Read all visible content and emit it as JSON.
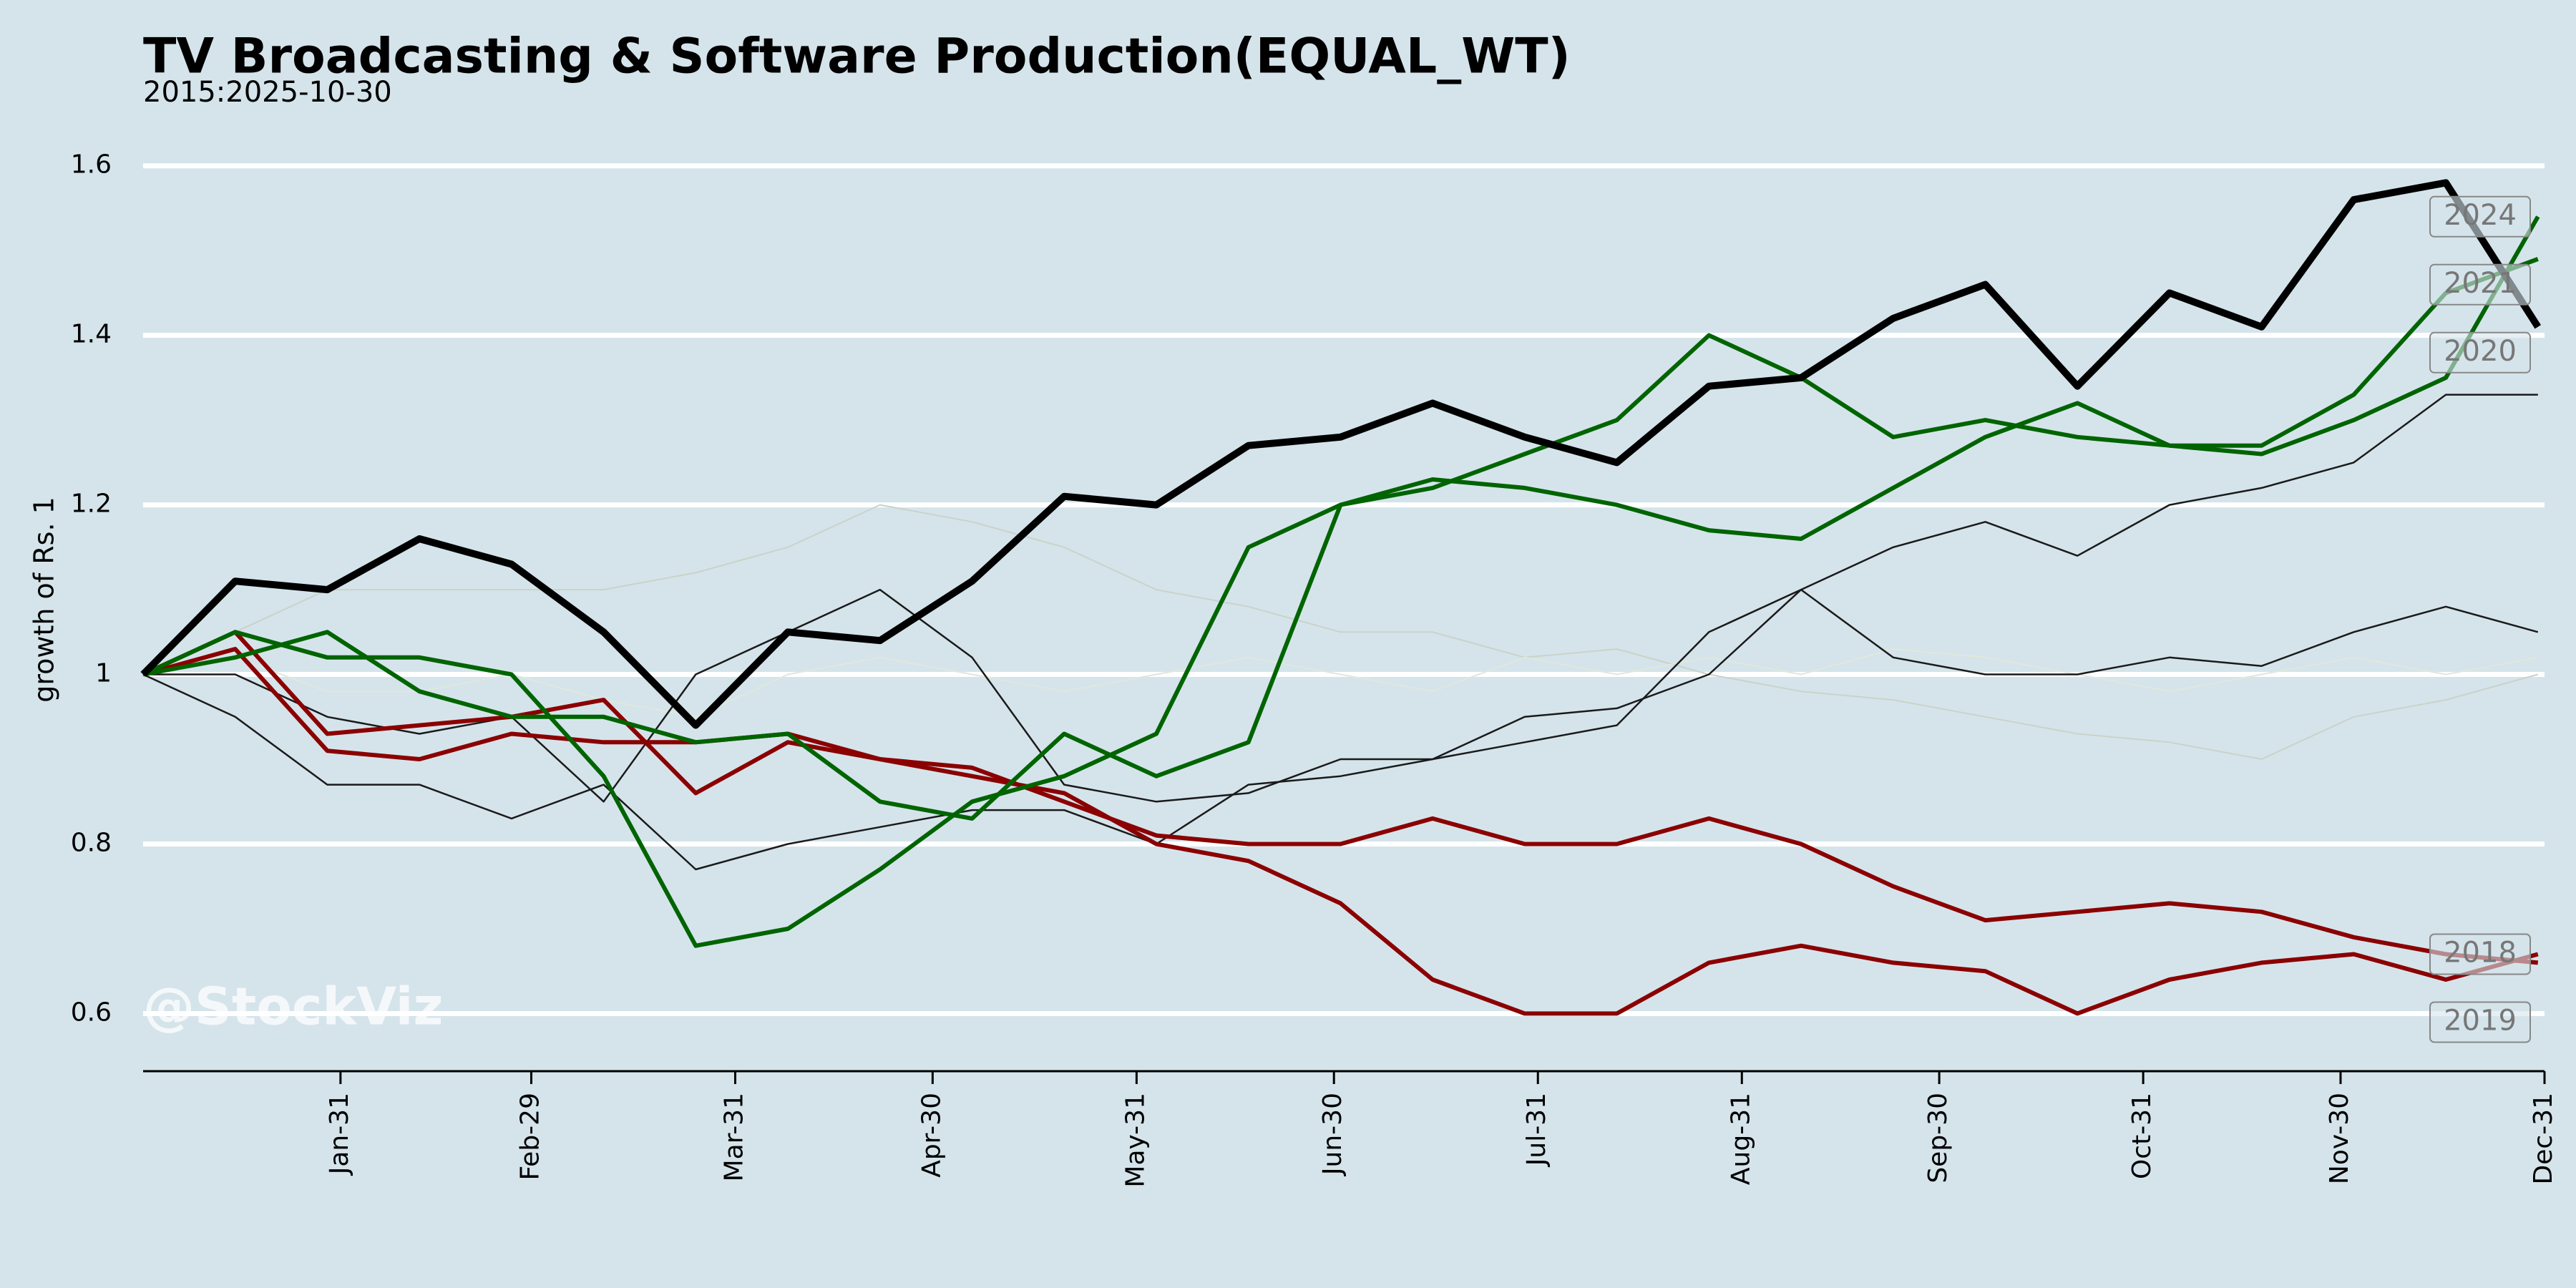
{
  "chart_data": {
    "type": "line",
    "title": "TV Broadcasting & Software Production(EQUAL_WT)",
    "subtitle": "2015:2025-10-30",
    "y_label": "growth of Rs. 1",
    "watermark": "@StockViz",
    "x": [
      1,
      15,
      29,
      43,
      57,
      71,
      85,
      99,
      113,
      127,
      141,
      155,
      169,
      183,
      197,
      211,
      225,
      239,
      253,
      267,
      281,
      295,
      309,
      323,
      337,
      351,
      365
    ],
    "xlim": [
      1,
      366
    ],
    "xticks": [
      {
        "value": 31,
        "label": "Jan-31"
      },
      {
        "value": 60,
        "label": "Feb-29"
      },
      {
        "value": 91,
        "label": "Mar-31"
      },
      {
        "value": 121,
        "label": "Apr-30"
      },
      {
        "value": 152,
        "label": "May-31"
      },
      {
        "value": 182,
        "label": "Jun-30"
      },
      {
        "value": 213,
        "label": "Jul-31"
      },
      {
        "value": 244,
        "label": "Aug-31"
      },
      {
        "value": 274,
        "label": "Sep-30"
      },
      {
        "value": 305,
        "label": "Oct-31"
      },
      {
        "value": 335,
        "label": "Nov-30"
      },
      {
        "value": 366,
        "label": "Dec-31"
      }
    ],
    "ylim": [
      0.532,
      1.62
    ],
    "yticks": [
      0.6,
      0.8,
      1.0,
      1.2,
      1.4,
      1.6
    ],
    "grid": true,
    "series": [
      {
        "color": "#c9d3c8",
        "values": [
          1.0,
          1.05,
          1.1,
          1.1,
          1.1,
          1.1,
          1.12,
          1.15,
          1.2,
          1.18,
          1.15,
          1.1,
          1.08,
          1.05,
          1.05,
          1.02,
          1.03,
          1.0,
          0.98,
          0.97,
          0.95,
          0.93,
          0.92,
          0.9,
          0.95,
          0.97,
          1.0
        ]
      },
      {
        "color": "#dfe8dc",
        "values": [
          1.0,
          1.02,
          0.98,
          0.98,
          1.0,
          0.97,
          0.95,
          1.0,
          1.02,
          1.0,
          0.98,
          1.0,
          1.02,
          1.0,
          0.98,
          1.02,
          1.0,
          1.02,
          1.0,
          1.03,
          1.02,
          1.0,
          0.98,
          1.0,
          1.02,
          1.0,
          1.02
        ]
      },
      {
        "color": "#1a1a1a",
        "values": [
          1.0,
          0.95,
          0.87,
          0.87,
          0.83,
          0.87,
          0.77,
          0.8,
          0.82,
          0.84,
          0.84,
          0.8,
          0.87,
          0.88,
          0.9,
          0.95,
          0.96,
          1.0,
          1.1,
          1.15,
          1.18,
          1.14,
          1.2,
          1.22,
          1.25,
          1.33,
          1.33
        ]
      },
      {
        "color": "#1a1a1a",
        "values": [
          1.0,
          1.0,
          0.95,
          0.93,
          0.95,
          0.85,
          1.0,
          1.05,
          1.1,
          1.02,
          0.87,
          0.85,
          0.86,
          0.9,
          0.9,
          0.92,
          0.94,
          1.05,
          1.1,
          1.02,
          1.0,
          1.0,
          1.02,
          1.01,
          1.05,
          1.08,
          1.05
        ]
      },
      {
        "name": "2019",
        "color": "#8b0000",
        "values": [
          1.0,
          1.05,
          0.93,
          0.94,
          0.95,
          0.97,
          0.86,
          0.92,
          0.9,
          0.89,
          0.85,
          0.81,
          0.8,
          0.8,
          0.83,
          0.8,
          0.8,
          0.83,
          0.8,
          0.75,
          0.71,
          0.72,
          0.73,
          0.72,
          0.69,
          0.67,
          0.66
        ]
      },
      {
        "name": "2018",
        "color": "#8b0000",
        "values": [
          1.0,
          1.03,
          0.91,
          0.9,
          0.93,
          0.92,
          0.92,
          0.93,
          0.9,
          0.88,
          0.86,
          0.8,
          0.78,
          0.73,
          0.64,
          0.6,
          0.6,
          0.66,
          0.68,
          0.66,
          0.65,
          0.6,
          0.64,
          0.66,
          0.67,
          0.64,
          0.67
        ]
      },
      {
        "name": "2021",
        "color": "#006400",
        "values": [
          1.0,
          1.05,
          1.02,
          1.02,
          1.0,
          0.88,
          0.68,
          0.7,
          0.77,
          0.85,
          0.88,
          0.93,
          1.15,
          1.2,
          1.22,
          1.26,
          1.3,
          1.4,
          1.35,
          1.28,
          1.3,
          1.28,
          1.27,
          1.27,
          1.33,
          1.45,
          1.49
        ]
      },
      {
        "name": "2024",
        "color": "#006400",
        "values": [
          1.0,
          1.02,
          1.05,
          0.98,
          0.95,
          0.95,
          0.92,
          0.93,
          0.85,
          0.83,
          0.93,
          0.88,
          0.92,
          1.2,
          1.23,
          1.22,
          1.2,
          1.17,
          1.16,
          1.22,
          1.28,
          1.32,
          1.27,
          1.26,
          1.3,
          1.35,
          1.54
        ]
      },
      {
        "name": "2020",
        "color": "#000000",
        "values": [
          1.0,
          1.11,
          1.1,
          1.16,
          1.13,
          1.05,
          0.94,
          1.05,
          1.04,
          1.11,
          1.21,
          1.2,
          1.27,
          1.28,
          1.32,
          1.28,
          1.25,
          1.34,
          1.35,
          1.42,
          1.46,
          1.34,
          1.45,
          1.41,
          1.56,
          1.58,
          1.41
        ]
      }
    ]
  }
}
